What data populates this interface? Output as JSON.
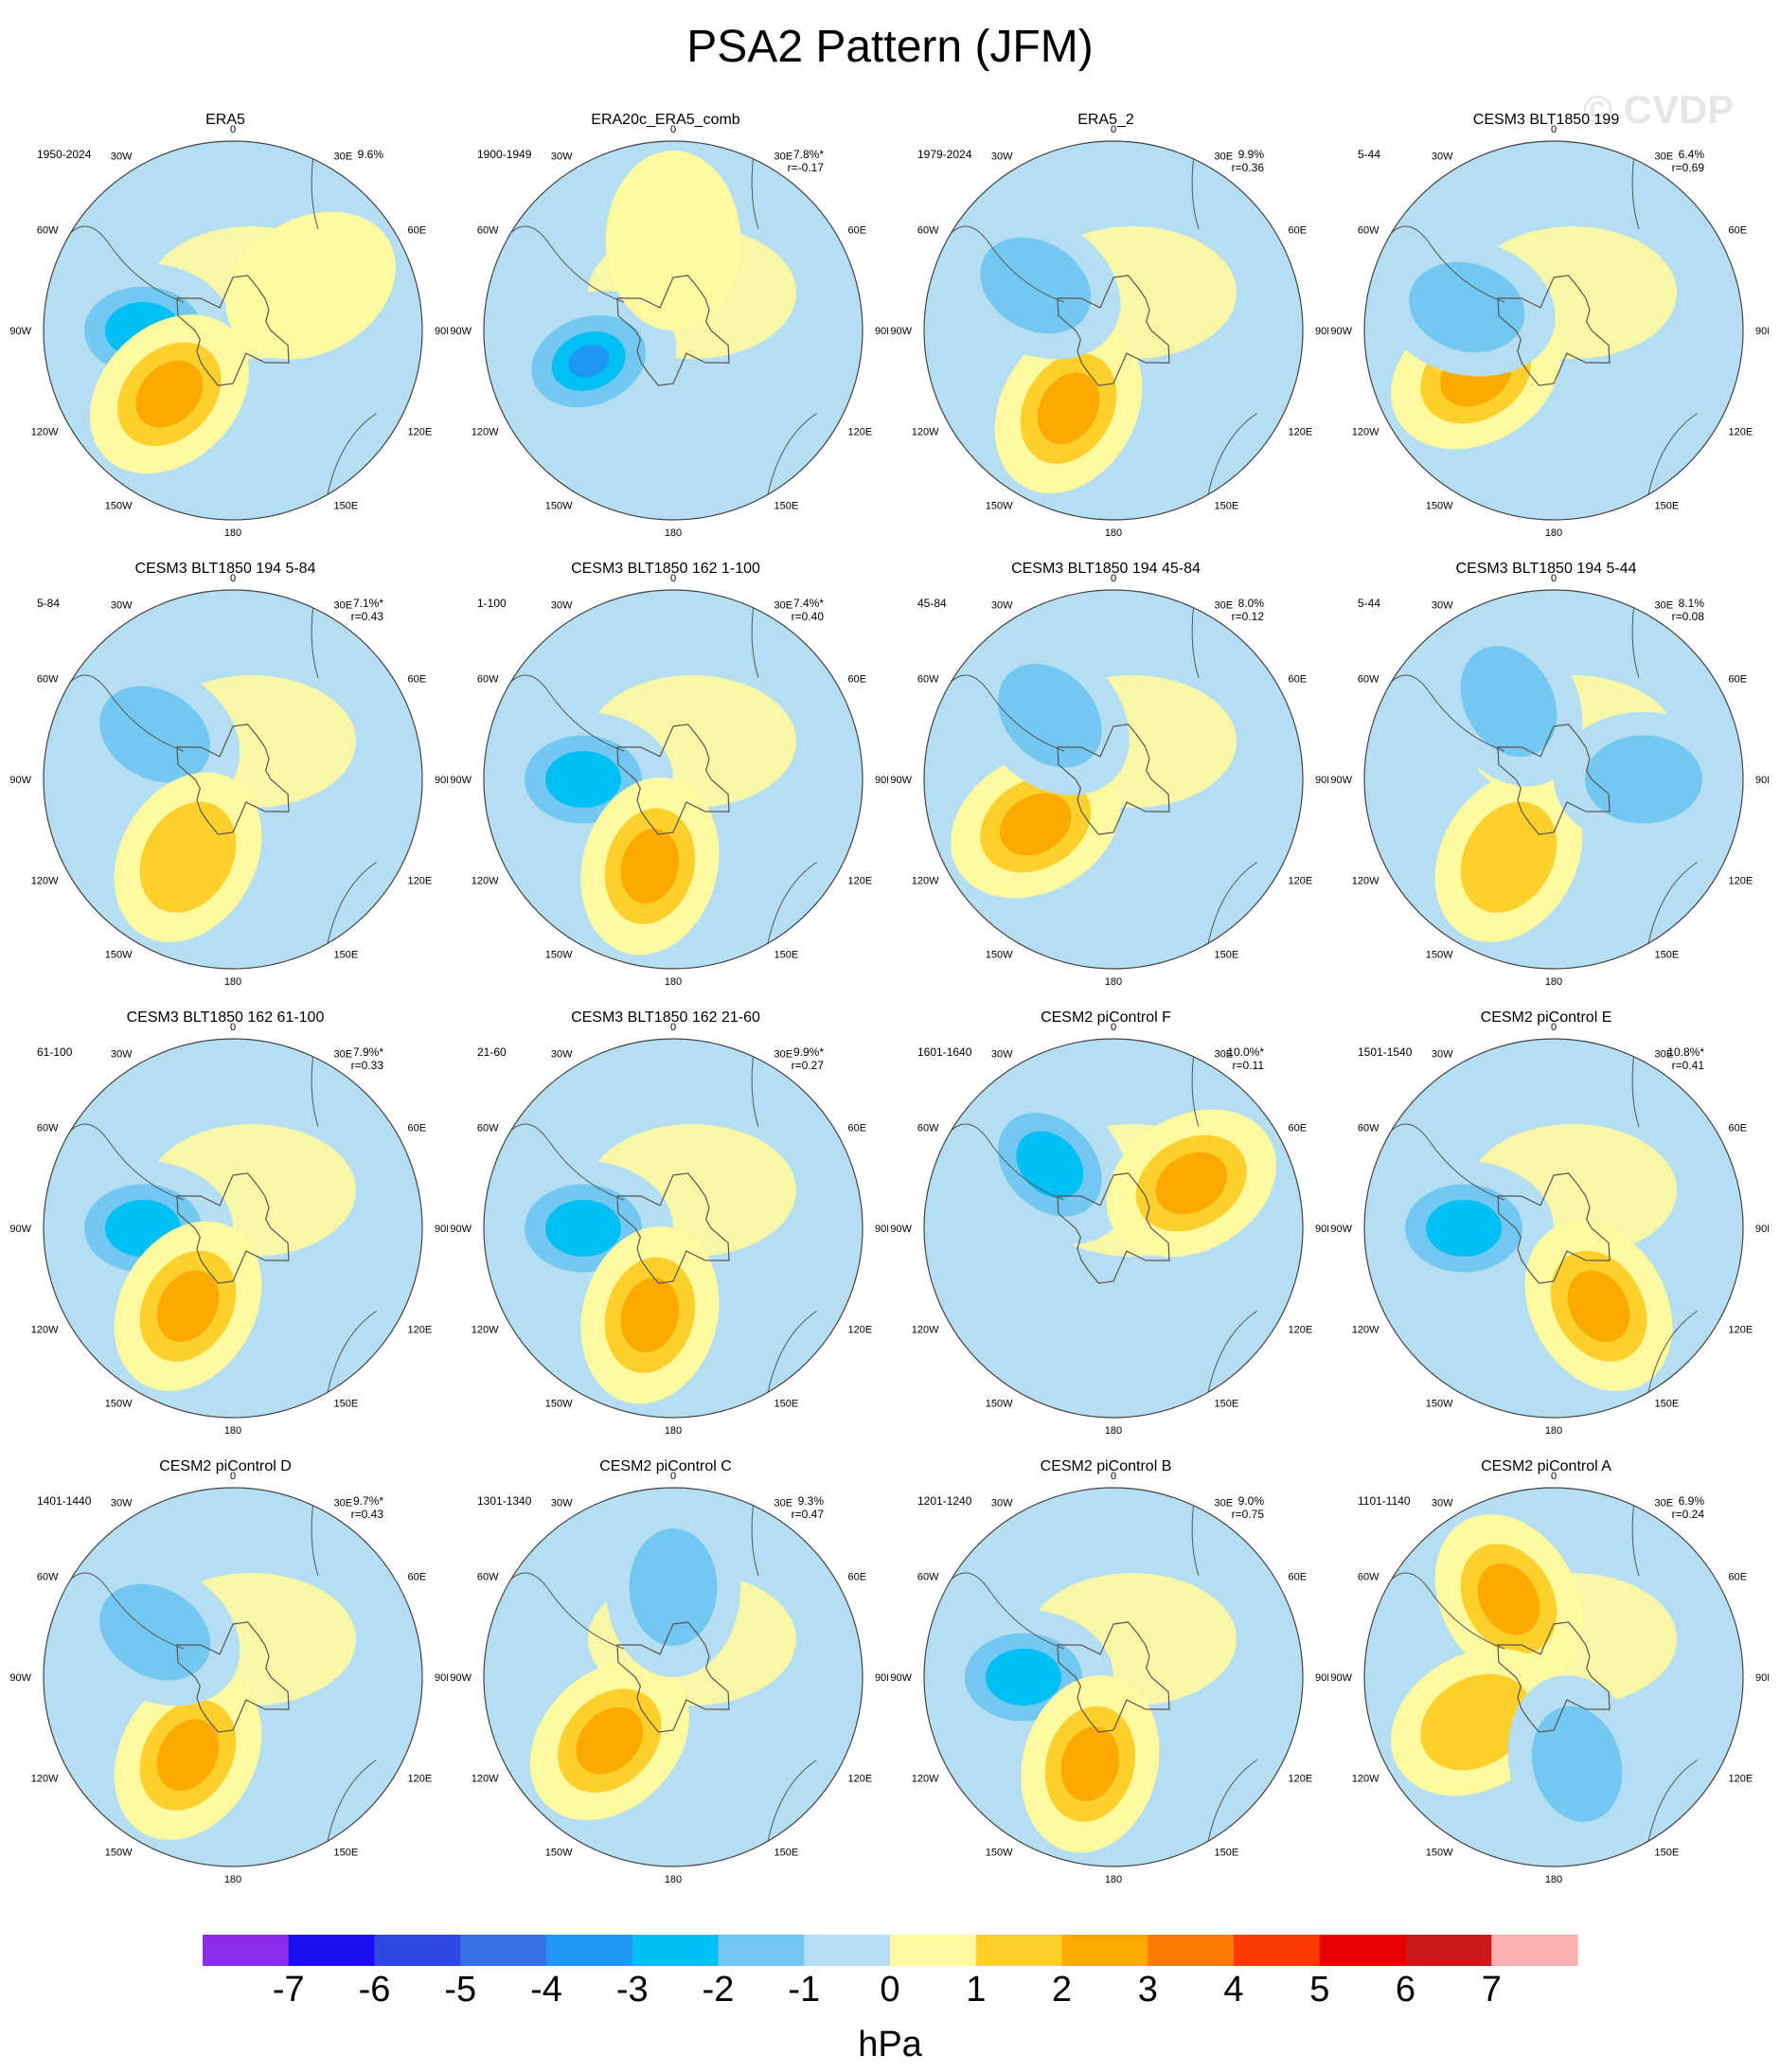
{
  "title": "PSA2 Pattern (JFM)",
  "watermark": "© CVDP",
  "unit": "hPa",
  "lon_labels": [
    "0",
    "30E",
    "60E",
    "90E",
    "120E",
    "150E",
    "180",
    "150W",
    "120W",
    "90W",
    "60W",
    "30W"
  ],
  "colors": {
    "ocean_default": "#b5def2",
    "land_line": "#555555"
  },
  "colorbar": {
    "colors": [
      "#8a2be8",
      "#1a0ff0",
      "#2e48e0",
      "#3572e6",
      "#1e96f2",
      "#00bff2",
      "#72c8f0",
      "#b5def2",
      "#fff9a0",
      "#fdd02e",
      "#fdaa00",
      "#fc7a06",
      "#fa3a00",
      "#e80000",
      "#cc1a1a",
      "#fbb0b0"
    ],
    "labels": [
      "-7",
      "-6",
      "-5",
      "-4",
      "-3",
      "-2",
      "-1",
      "0",
      "1",
      "2",
      "3",
      "4",
      "5",
      "6",
      "7"
    ]
  },
  "panels": [
    {
      "title": "ERA5",
      "years": "1950-2024",
      "pct": "9.6%",
      "r": "",
      "blobs": [
        {
          "lon": "90W",
          "level": "-3"
        },
        {
          "lon": "135W",
          "level": "+3"
        },
        {
          "lon": "60E",
          "level": "+1"
        }
      ]
    },
    {
      "title": "ERA20c_ERA5_comb",
      "years": "1900-1949",
      "pct": "7.8%*",
      "r": "r=-0.17",
      "blobs": [
        {
          "lon": "110W",
          "level": "-4"
        },
        {
          "lon": "0",
          "level": "+1"
        }
      ]
    },
    {
      "title": "ERA5_2",
      "years": "1979-2024",
      "pct": "9.9%",
      "r": "r=0.36",
      "blobs": [
        {
          "lon": "150W",
          "level": "+3"
        },
        {
          "lon": "60W",
          "level": "-2"
        }
      ]
    },
    {
      "title": "CESM3 BLT1850 199",
      "years": "5-44",
      "pct": "6.4%",
      "r": "r=0.69",
      "blobs": [
        {
          "lon": "120W",
          "level": "+3"
        },
        {
          "lon": "75W",
          "level": "-2"
        }
      ]
    },
    {
      "title": "CESM3 BLT1850 194 5-84",
      "years": "5-84",
      "pct": "7.1%*",
      "r": "r=0.43",
      "blobs": [
        {
          "lon": "60W",
          "level": "-2"
        },
        {
          "lon": "150W",
          "level": "+2"
        }
      ]
    },
    {
      "title": "CESM3 BLT1850 162 1-100",
      "years": "1-100",
      "pct": "7.4%*",
      "r": "r=0.40",
      "blobs": [
        {
          "lon": "90W",
          "level": "-3"
        },
        {
          "lon": "165W",
          "level": "+3"
        }
      ]
    },
    {
      "title": "CESM3 BLT1850 194 45-84",
      "years": "45-84",
      "pct": "8.0%",
      "r": "r=0.12",
      "blobs": [
        {
          "lon": "120W",
          "level": "+3"
        },
        {
          "lon": "45W",
          "level": "-2"
        }
      ]
    },
    {
      "title": "CESM3 BLT1850 194 5-44",
      "years": "5-44",
      "pct": "8.1%",
      "r": "r=0.08",
      "blobs": [
        {
          "lon": "150W",
          "level": "+2"
        },
        {
          "lon": "90E",
          "level": "-2"
        },
        {
          "lon": "30W",
          "level": "-2"
        }
      ]
    },
    {
      "title": "CESM3 BLT1850 162 61-100",
      "years": "61-100",
      "pct": "7.9%*",
      "r": "r=0.33",
      "blobs": [
        {
          "lon": "90W",
          "level": "-3"
        },
        {
          "lon": "150W",
          "level": "+3"
        }
      ]
    },
    {
      "title": "CESM3 BLT1850 162 21-60",
      "years": "21-60",
      "pct": "9.9%*",
      "r": "r=0.27",
      "blobs": [
        {
          "lon": "90W",
          "level": "-3"
        },
        {
          "lon": "165W",
          "level": "+3"
        }
      ]
    },
    {
      "title": "CESM2 piControl F",
      "years": "1601-1640",
      "pct": "10.0%*",
      "r": "r=0.11",
      "blobs": [
        {
          "lon": "45W",
          "level": "-3"
        },
        {
          "lon": "60E",
          "level": "+3"
        }
      ]
    },
    {
      "title": "CESM2 piControl E",
      "years": "1501-1540",
      "pct": "10.8%*",
      "r": "r=0.41",
      "blobs": [
        {
          "lon": "90W",
          "level": "-3"
        },
        {
          "lon": "150E",
          "level": "+3"
        }
      ]
    },
    {
      "title": "CESM2 piControl D",
      "years": "1401-1440",
      "pct": "9.7%*",
      "r": "r=0.43",
      "blobs": [
        {
          "lon": "150W",
          "level": "+3"
        },
        {
          "lon": "60W",
          "level": "-2"
        }
      ]
    },
    {
      "title": "CESM2 piControl C",
      "years": "1301-1340",
      "pct": "9.3%",
      "r": "r=0.47",
      "blobs": [
        {
          "lon": "135W",
          "level": "+3"
        },
        {
          "lon": "0",
          "level": "-2"
        }
      ]
    },
    {
      "title": "CESM2 piControl B",
      "years": "1201-1240",
      "pct": "9.0%",
      "r": "r=0.75",
      "blobs": [
        {
          "lon": "90W",
          "level": "-3"
        },
        {
          "lon": "165W",
          "level": "+3"
        }
      ]
    },
    {
      "title": "CESM2 piControl A",
      "years": "1101-1140",
      "pct": "6.9%",
      "r": "r=0.24",
      "blobs": [
        {
          "lon": "30W",
          "level": "+3"
        },
        {
          "lon": "120W",
          "level": "+2"
        },
        {
          "lon": "165E",
          "level": "-2"
        }
      ]
    }
  ]
}
